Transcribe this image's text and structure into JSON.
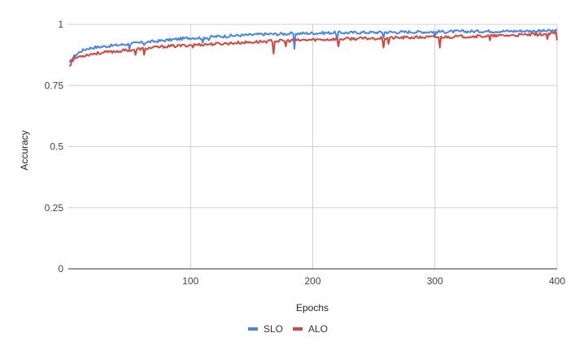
{
  "chart_data": {
    "type": "line",
    "title": "",
    "xlabel": "Epochs",
    "ylabel": "Accuracy",
    "xlim": [
      0,
      400
    ],
    "ylim": [
      0,
      1
    ],
    "x_ticks": [
      100,
      200,
      300,
      400
    ],
    "y_ticks": [
      0,
      0.25,
      0.5,
      0.75,
      1
    ],
    "x_tick_labels": [
      "100",
      "200",
      "300",
      "400"
    ],
    "y_tick_labels": [
      "0",
      "0.25",
      "0.5",
      "0.75",
      "1"
    ],
    "grid": true,
    "legend_position": "bottom",
    "x": [
      1,
      3,
      5,
      10,
      15,
      20,
      30,
      40,
      50,
      60,
      70,
      80,
      90,
      100,
      110,
      120,
      130,
      140,
      150,
      160,
      170,
      180,
      190,
      200,
      210,
      220,
      230,
      240,
      250,
      260,
      270,
      280,
      290,
      300,
      310,
      320,
      330,
      340,
      350,
      360,
      370,
      380,
      390,
      400
    ],
    "series": [
      {
        "name": "SLO",
        "color": "#4285f4",
        "values": [
          0.84,
          0.86,
          0.87,
          0.89,
          0.9,
          0.905,
          0.91,
          0.915,
          0.92,
          0.925,
          0.93,
          0.935,
          0.94,
          0.945,
          0.945,
          0.95,
          0.952,
          0.955,
          0.957,
          0.96,
          0.96,
          0.962,
          0.963,
          0.964,
          0.965,
          0.966,
          0.966,
          0.967,
          0.967,
          0.968,
          0.968,
          0.969,
          0.969,
          0.97,
          0.97,
          0.971,
          0.971,
          0.972,
          0.972,
          0.972,
          0.973,
          0.973,
          0.973,
          0.974
        ]
      },
      {
        "name": "ALO",
        "color": "#db4437",
        "values": [
          0.83,
          0.85,
          0.86,
          0.87,
          0.875,
          0.88,
          0.885,
          0.89,
          0.895,
          0.9,
          0.905,
          0.91,
          0.912,
          0.915,
          0.918,
          0.92,
          0.922,
          0.925,
          0.927,
          0.93,
          0.932,
          0.933,
          0.935,
          0.937,
          0.938,
          0.94,
          0.941,
          0.942,
          0.943,
          0.944,
          0.945,
          0.946,
          0.947,
          0.948,
          0.949,
          0.95,
          0.951,
          0.952,
          0.953,
          0.955,
          0.956,
          0.958,
          0.96,
          0.965
        ]
      }
    ],
    "dips": {
      "SLO": [
        [
          50,
          0.9
        ],
        [
          62,
          0.915
        ],
        [
          110,
          0.925
        ],
        [
          115,
          0.935
        ],
        [
          185,
          0.9
        ],
        [
          220,
          0.935
        ],
        [
          258,
          0.945
        ],
        [
          300,
          0.95
        ]
      ],
      "ALO": [
        [
          55,
          0.875
        ],
        [
          62,
          0.875
        ],
        [
          102,
          0.905
        ],
        [
          168,
          0.88
        ],
        [
          178,
          0.91
        ],
        [
          221,
          0.91
        ],
        [
          258,
          0.905
        ],
        [
          262,
          0.92
        ],
        [
          304,
          0.905
        ],
        [
          345,
          0.935
        ],
        [
          392,
          0.94
        ],
        [
          400,
          0.935
        ]
      ]
    }
  }
}
